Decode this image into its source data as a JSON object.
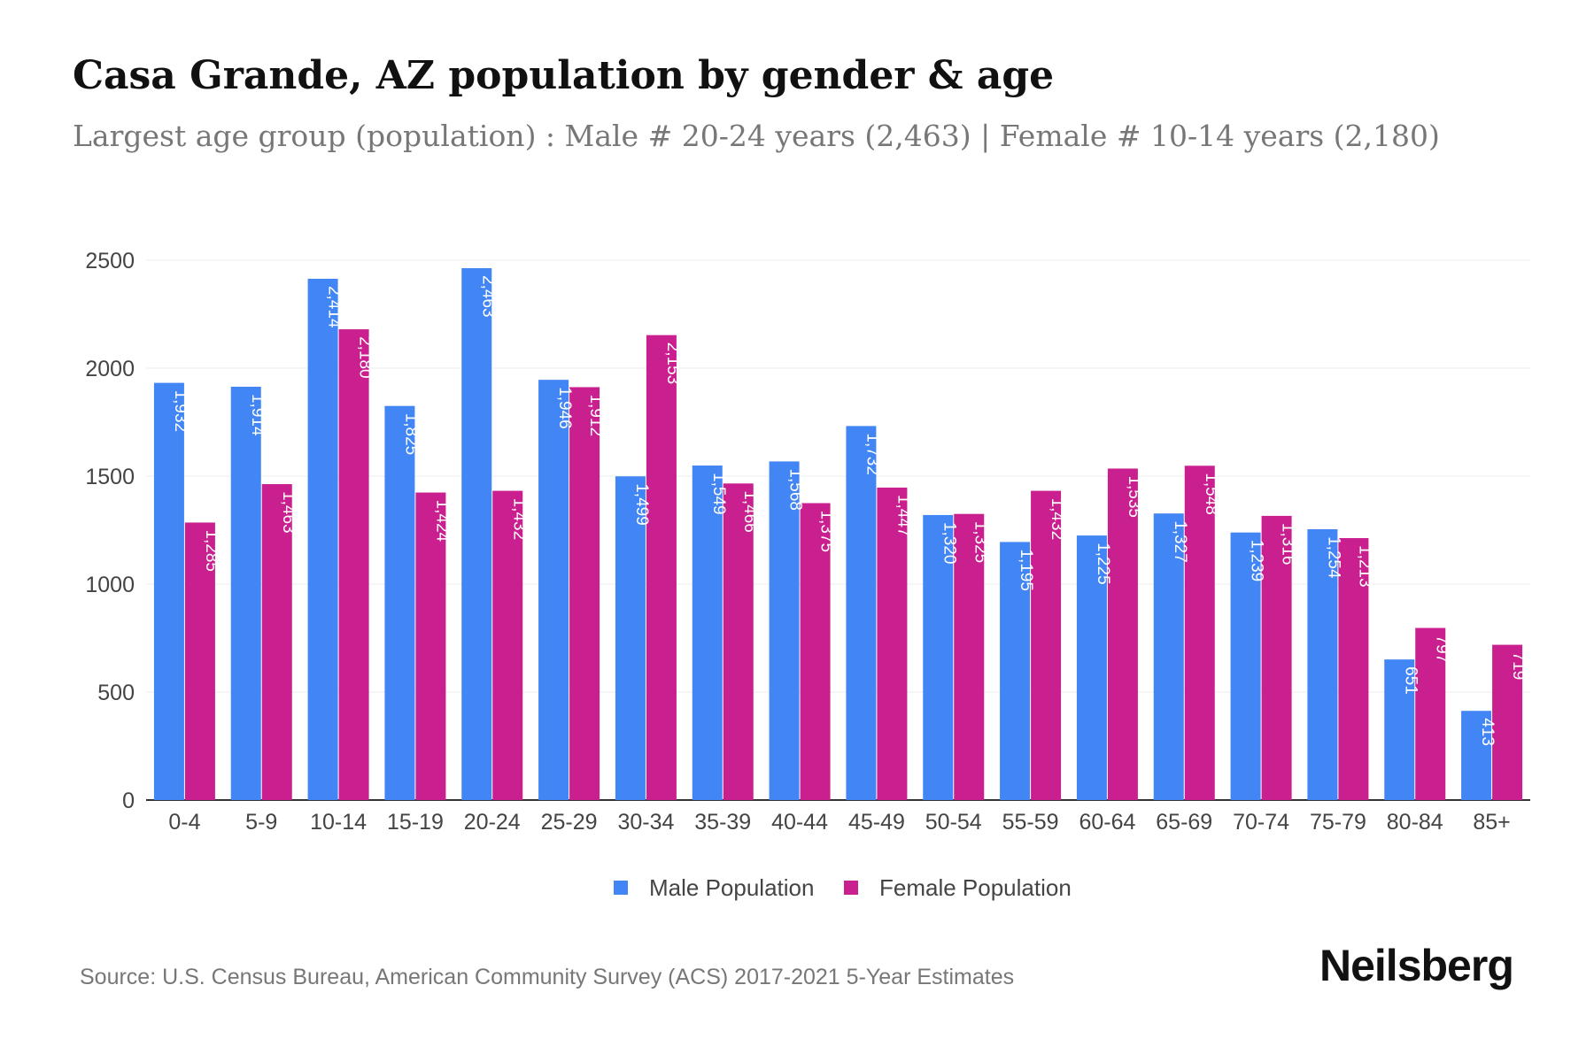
{
  "page": {
    "title": "Casa Grande, AZ population by gender & age",
    "subtitle": "Largest age group (population) : Male # 20-24 years (2,463) | Female # 10-14 years (2,180)",
    "source": "Source: U.S. Census Bureau, American Community Survey (ACS) 2017-2021 5-Year Estimates",
    "brand": "Neilsberg"
  },
  "chart_data": {
    "type": "bar",
    "title": "Casa Grande, AZ population by gender & age",
    "xlabel": "",
    "ylabel": "",
    "ylim": [
      0,
      2500
    ],
    "yticks": [
      0,
      500,
      1000,
      1500,
      2000,
      2500
    ],
    "grid": true,
    "legend_position": "bottom-center",
    "categories": [
      "0-4",
      "5-9",
      "10-14",
      "15-19",
      "20-24",
      "25-29",
      "30-34",
      "35-39",
      "40-44",
      "45-49",
      "50-54",
      "55-59",
      "60-64",
      "65-69",
      "70-74",
      "75-79",
      "80-84",
      "85+"
    ],
    "series": [
      {
        "name": "Male Population",
        "color": "#4285f4",
        "values": [
          1932,
          1914,
          2414,
          1825,
          2463,
          1946,
          1499,
          1549,
          1568,
          1732,
          1320,
          1195,
          1225,
          1327,
          1239,
          1254,
          651,
          413
        ]
      },
      {
        "name": "Female Population",
        "color": "#c91f8f",
        "values": [
          1285,
          1463,
          2180,
          1424,
          1432,
          1912,
          2153,
          1466,
          1375,
          1447,
          1325,
          1432,
          1535,
          1548,
          1316,
          1213,
          797,
          719
        ]
      }
    ]
  }
}
